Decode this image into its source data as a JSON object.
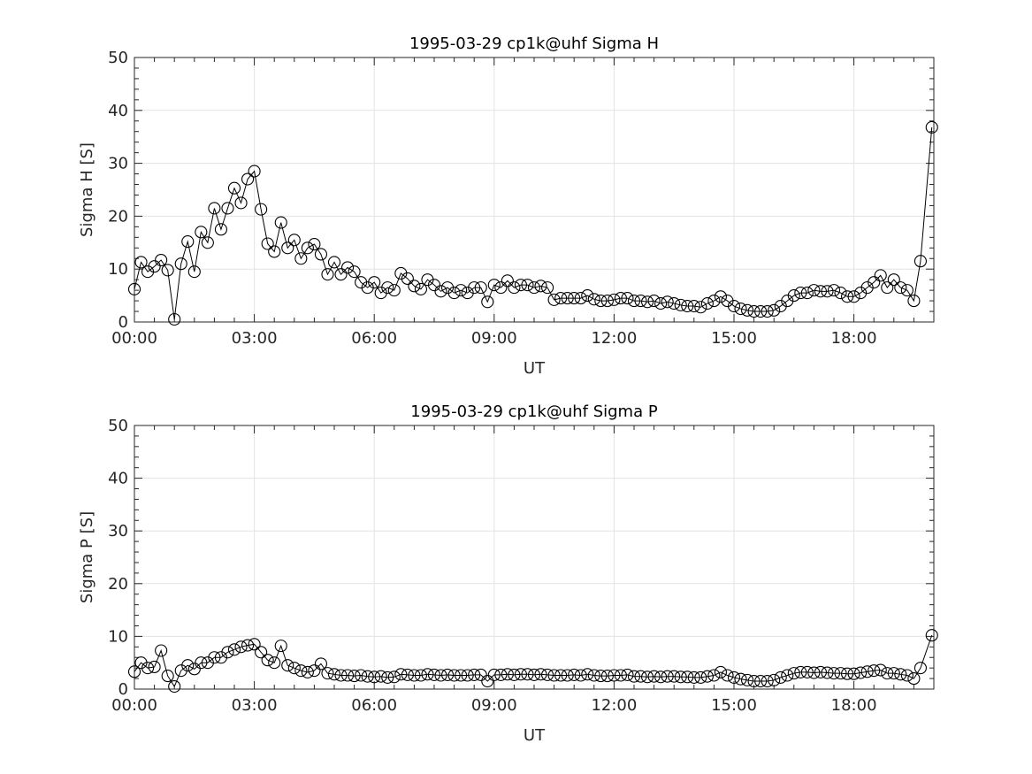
{
  "chart_data": [
    {
      "type": "line",
      "title": "1995-03-29  cp1k@uhf Sigma H",
      "xlabel": "UT",
      "ylabel": "Sigma H [S]",
      "xlim_hours": [
        0,
        20
      ],
      "ylim": [
        0,
        50
      ],
      "x_tick_labels": [
        "00:00",
        "03:00",
        "06:00",
        "09:00",
        "12:00",
        "15:00",
        "18:00"
      ],
      "x_tick_hours": [
        0,
        3,
        6,
        9,
        12,
        15,
        18
      ],
      "y_ticks": [
        0,
        10,
        20,
        30,
        40,
        50
      ],
      "grid": true,
      "marker": "open-circle",
      "x_step_minutes": 10,
      "values": [
        6.2,
        11.3,
        9.5,
        10.5,
        11.7,
        9.8,
        0.5,
        11.0,
        15.2,
        9.5,
        17.0,
        15.0,
        21.5,
        17.5,
        21.5,
        25.3,
        22.5,
        27.0,
        28.5,
        21.3,
        14.8,
        13.3,
        18.8,
        14.0,
        15.5,
        12.0,
        14.0,
        14.7,
        12.8,
        9.0,
        11.3,
        9.0,
        10.3,
        9.5,
        7.5,
        6.5,
        7.5,
        5.5,
        6.5,
        6.0,
        9.2,
        8.2,
        6.8,
        6.2,
        8.0,
        7.0,
        5.8,
        6.5,
        5.5,
        6.0,
        5.5,
        6.5,
        6.5,
        3.8,
        7.0,
        6.5,
        7.8,
        6.5,
        7.0,
        7.0,
        6.5,
        6.8,
        6.5,
        4.2,
        4.5,
        4.5,
        4.5,
        4.5,
        5.0,
        4.3,
        4.0,
        4.0,
        4.2,
        4.5,
        4.5,
        4.0,
        4.0,
        3.8,
        4.0,
        3.5,
        3.8,
        3.5,
        3.2,
        3.0,
        3.0,
        2.8,
        3.5,
        4.0,
        4.8,
        4.0,
        3.0,
        2.5,
        2.2,
        2.0,
        2.0,
        2.0,
        2.2,
        3.0,
        4.0,
        5.0,
        5.5,
        5.5,
        6.0,
        5.8,
        5.8,
        6.0,
        5.5,
        4.8,
        4.8,
        5.5,
        6.5,
        7.5,
        8.8,
        6.5,
        8.0,
        6.5,
        6.0,
        4.0,
        11.5
      ],
      "last_point": {
        "x_hours": 19.95,
        "value": 36.8
      }
    },
    {
      "type": "line",
      "title": "1995-03-29  cp1k@uhf Sigma P",
      "xlabel": "UT",
      "ylabel": "Sigma P [S]",
      "xlim_hours": [
        0,
        20
      ],
      "ylim": [
        0,
        50
      ],
      "x_tick_labels": [
        "00:00",
        "03:00",
        "06:00",
        "09:00",
        "12:00",
        "15:00",
        "18:00"
      ],
      "x_tick_hours": [
        0,
        3,
        6,
        9,
        12,
        15,
        18
      ],
      "y_ticks": [
        0,
        10,
        20,
        30,
        40,
        50
      ],
      "grid": true,
      "marker": "open-circle",
      "x_step_minutes": 10,
      "values": [
        3.3,
        5.0,
        4.0,
        4.2,
        7.3,
        2.5,
        0.5,
        3.5,
        4.5,
        3.8,
        5.0,
        5.0,
        6.0,
        6.0,
        7.0,
        7.5,
        8.0,
        8.3,
        8.5,
        7.0,
        5.5,
        5.0,
        8.2,
        4.5,
        4.0,
        3.5,
        3.2,
        3.5,
        4.8,
        3.0,
        2.8,
        2.6,
        2.6,
        2.5,
        2.6,
        2.4,
        2.3,
        2.4,
        2.2,
        2.3,
        2.8,
        2.7,
        2.6,
        2.6,
        2.8,
        2.7,
        2.6,
        2.7,
        2.6,
        2.6,
        2.6,
        2.7,
        2.7,
        1.5,
        2.7,
        2.7,
        2.8,
        2.7,
        2.8,
        2.8,
        2.7,
        2.8,
        2.7,
        2.6,
        2.6,
        2.6,
        2.7,
        2.6,
        2.8,
        2.6,
        2.5,
        2.5,
        2.6,
        2.6,
        2.7,
        2.4,
        2.4,
        2.3,
        2.4,
        2.3,
        2.4,
        2.4,
        2.3,
        2.3,
        2.2,
        2.2,
        2.4,
        2.6,
        3.2,
        2.6,
        2.2,
        1.9,
        1.7,
        1.5,
        1.5,
        1.5,
        1.7,
        2.2,
        2.6,
        3.0,
        3.2,
        3.2,
        3.1,
        3.2,
        3.1,
        3.0,
        3.0,
        2.9,
        2.9,
        3.1,
        3.3,
        3.5,
        3.6,
        3.0,
        3.0,
        2.8,
        2.6,
        2.0,
        4.0
      ],
      "last_point": {
        "x_hours": 19.95,
        "value": 10.2
      }
    }
  ]
}
